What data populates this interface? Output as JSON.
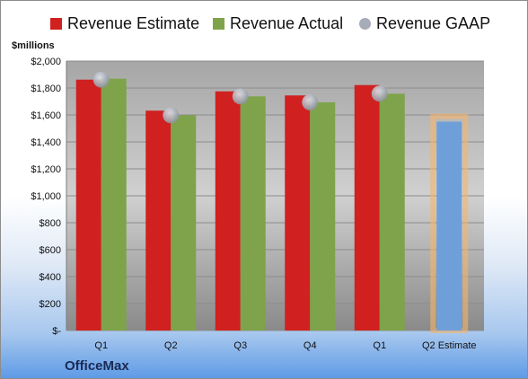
{
  "chart_data": {
    "type": "bar",
    "unit_label": "$millions",
    "categories": [
      "Q1",
      "Q2",
      "Q3",
      "Q4",
      "Q1",
      "Q2 Estimate"
    ],
    "ylim": [
      0,
      2000
    ],
    "yticks": [
      "$-",
      "$200",
      "$400",
      "$600",
      "$800",
      "$1,000",
      "$1,200",
      "$1,400",
      "$1,600",
      "$1,800",
      "$2,000"
    ],
    "series": [
      {
        "name": "Revenue Estimate",
        "type": "bar",
        "color": "#d02020",
        "values": [
          1862,
          1632,
          1775,
          1745,
          1822,
          null
        ]
      },
      {
        "name": "Revenue Actual",
        "type": "bar",
        "color": "#7fa34a",
        "values": [
          1869,
          1598,
          1738,
          1694,
          1758,
          null
        ]
      },
      {
        "name": "Revenue GAAP",
        "type": "marker",
        "color": "#a6acb8",
        "values": [
          1862,
          1598,
          1738,
          1694,
          1758,
          null
        ]
      },
      {
        "name": "",
        "type": "bar-estimate",
        "color": "#6f9fd8",
        "highlight": "#f5b46a",
        "values": [
          null,
          null,
          null,
          null,
          null,
          1550
        ]
      }
    ],
    "legend_position": "top",
    "grid": true
  },
  "brand": "OfficeMax"
}
